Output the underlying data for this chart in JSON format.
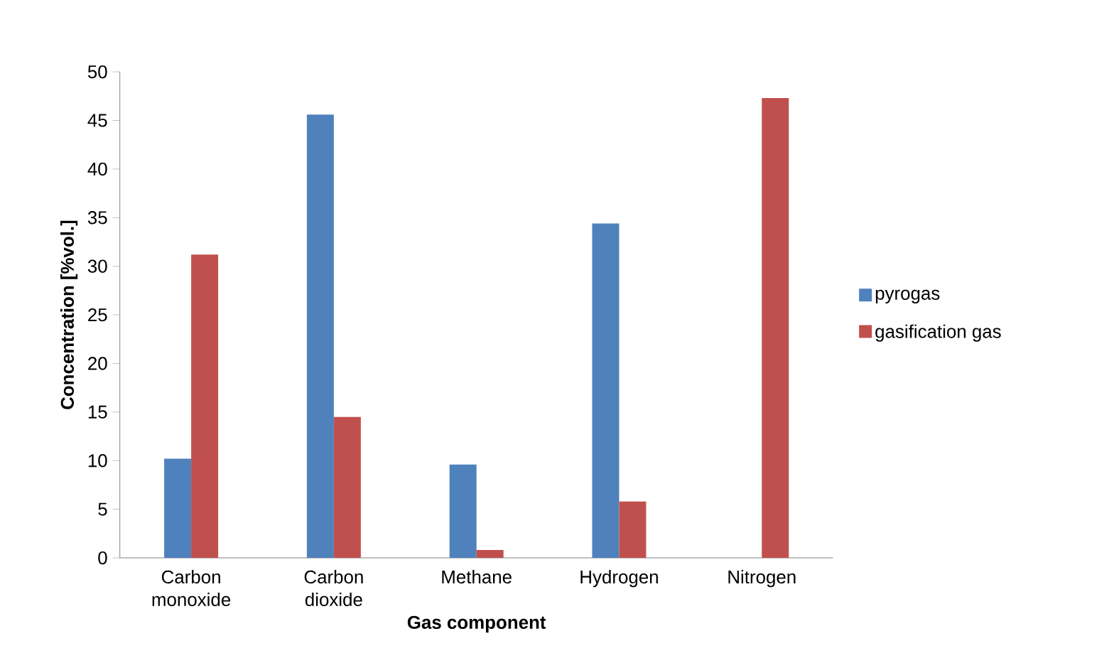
{
  "chart_data": {
    "type": "bar",
    "xlabel": "Gas component",
    "ylabel": "Concentration [%vol.]",
    "categories": [
      "Carbon monoxide",
      "Carbon dioxide",
      "Methane",
      "Hydrogen",
      "Nitrogen"
    ],
    "series": [
      {
        "name": "pyrogas",
        "color": "#4f81bd",
        "values": [
          10.2,
          45.6,
          9.6,
          34.4,
          null
        ]
      },
      {
        "name": "gasification gas",
        "color": "#c0504d",
        "values": [
          31.2,
          14.5,
          0.8,
          5.8,
          47.3
        ]
      }
    ],
    "ylim": [
      0,
      50
    ],
    "yticks": [
      0,
      5,
      10,
      15,
      20,
      25,
      30,
      35,
      40,
      45,
      50
    ],
    "grid": false,
    "legend": "right"
  }
}
